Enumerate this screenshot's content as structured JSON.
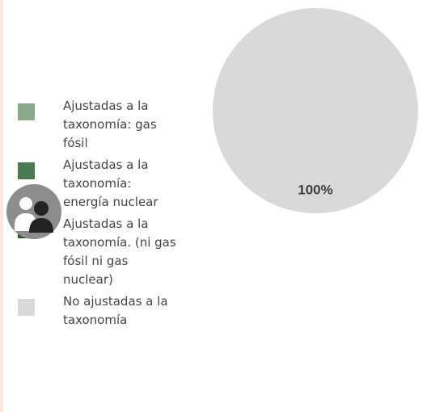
{
  "chart_data": {
    "type": "pie",
    "categories": [
      "Ajustadas a la taxonomía: gas fósil",
      "Ajustadas a la taxonomía: energía nuclear",
      "Ajustadas a la taxonomía. (ni gas fósil ni gas nuclear)",
      "No ajustadas a la taxonomía"
    ],
    "values": [
      0,
      0,
      0,
      100
    ],
    "value_labels": [
      null,
      null,
      null,
      "100%"
    ],
    "colors": [
      "#8aa88a",
      "#4b7a52",
      "#2e5b35",
      "#d9d9d9"
    ]
  }
}
